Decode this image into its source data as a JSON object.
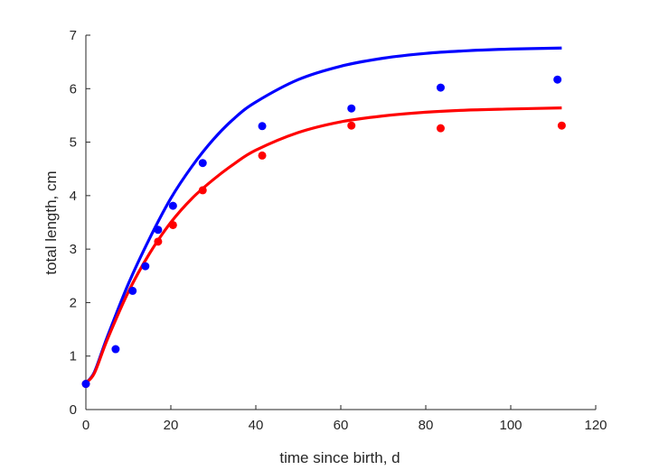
{
  "chart_data": {
    "type": "scatter",
    "xlabel": "time since birth, d",
    "ylabel": "total length, cm",
    "xlim": [
      0,
      120
    ],
    "ylim": [
      0,
      7
    ],
    "xticks": [
      "0",
      "20",
      "40",
      "60",
      "80",
      "100",
      "120"
    ],
    "yticks": [
      "0",
      "1",
      "2",
      "3",
      "4",
      "5",
      "6",
      "7"
    ],
    "grid": false,
    "legend": "none",
    "series": [
      {
        "color": "#0000ff",
        "points": [
          {
            "x": 0,
            "y": 0.48
          },
          {
            "x": 7,
            "y": 1.13
          },
          {
            "x": 11,
            "y": 2.22
          },
          {
            "x": 14,
            "y": 2.68
          },
          {
            "x": 17,
            "y": 3.36
          },
          {
            "x": 20.5,
            "y": 3.81
          },
          {
            "x": 27.5,
            "y": 4.61
          },
          {
            "x": 41.5,
            "y": 5.3
          },
          {
            "x": 62.5,
            "y": 5.63
          },
          {
            "x": 83.5,
            "y": 6.02
          },
          {
            "x": 111,
            "y": 6.17
          }
        ],
        "fit": [
          {
            "x": 0,
            "y": 0.5
          },
          {
            "x": 2,
            "y": 0.7
          },
          {
            "x": 5,
            "y": 1.35
          },
          {
            "x": 10,
            "y": 2.35
          },
          {
            "x": 15,
            "y": 3.2
          },
          {
            "x": 20,
            "y": 3.95
          },
          {
            "x": 25,
            "y": 4.55
          },
          {
            "x": 30,
            "y": 5.05
          },
          {
            "x": 35,
            "y": 5.45
          },
          {
            "x": 40,
            "y": 5.75
          },
          {
            "x": 50,
            "y": 6.17
          },
          {
            "x": 60,
            "y": 6.42
          },
          {
            "x": 70,
            "y": 6.57
          },
          {
            "x": 80,
            "y": 6.66
          },
          {
            "x": 90,
            "y": 6.71
          },
          {
            "x": 100,
            "y": 6.74
          },
          {
            "x": 112,
            "y": 6.76
          }
        ]
      },
      {
        "color": "#ff0000",
        "points": [
          {
            "x": 0,
            "y": 0.48
          },
          {
            "x": 17,
            "y": 3.14
          },
          {
            "x": 20.5,
            "y": 3.45
          },
          {
            "x": 27.5,
            "y": 4.1
          },
          {
            "x": 41.5,
            "y": 4.75
          },
          {
            "x": 62.5,
            "y": 5.31
          },
          {
            "x": 83.5,
            "y": 5.26
          },
          {
            "x": 112,
            "y": 5.31
          }
        ],
        "fit": [
          {
            "x": 0,
            "y": 0.5
          },
          {
            "x": 2,
            "y": 0.68
          },
          {
            "x": 5,
            "y": 1.3
          },
          {
            "x": 10,
            "y": 2.2
          },
          {
            "x": 15,
            "y": 2.92
          },
          {
            "x": 20,
            "y": 3.5
          },
          {
            "x": 25,
            "y": 3.95
          },
          {
            "x": 30,
            "y": 4.3
          },
          {
            "x": 35,
            "y": 4.6
          },
          {
            "x": 40,
            "y": 4.85
          },
          {
            "x": 50,
            "y": 5.18
          },
          {
            "x": 60,
            "y": 5.38
          },
          {
            "x": 70,
            "y": 5.49
          },
          {
            "x": 80,
            "y": 5.56
          },
          {
            "x": 90,
            "y": 5.6
          },
          {
            "x": 100,
            "y": 5.62
          },
          {
            "x": 112,
            "y": 5.64
          }
        ]
      }
    ]
  }
}
